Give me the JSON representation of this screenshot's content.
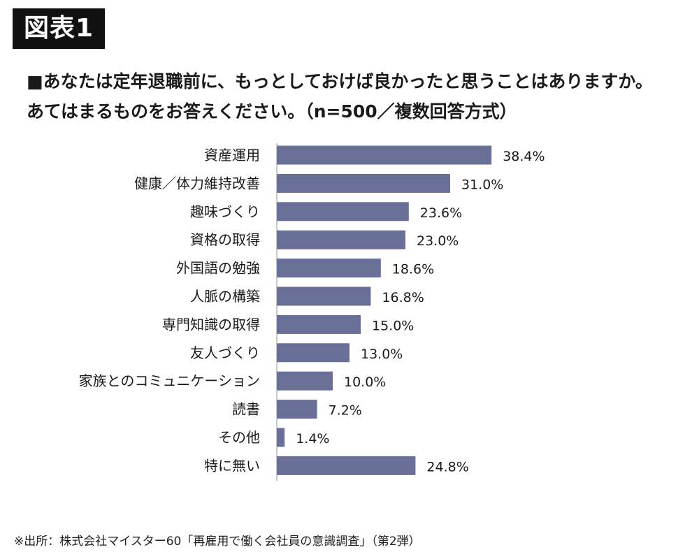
{
  "figure_tag": "図表1",
  "question": "■あなたは定年退職前に、もっとしておけば良かったと思うことはありますか。あてはまるものをお答えください。（n=500／複数回答方式）",
  "source": "※出所：株式会社マイスター60「再雇用で働く会社員の意識調査」（第2弾）",
  "colors": {
    "bar": "#6a6f98",
    "axis": "#b8b8b8",
    "text": "#1a1a1a"
  },
  "chart_data": {
    "type": "bar",
    "orientation": "horizontal",
    "categories": [
      "資産運用",
      "健康／体力維持改善",
      "趣味づくり",
      "資格の取得",
      "外国語の勉強",
      "人脈の構築",
      "専門知識の取得",
      "友人づくり",
      "家族とのコミュニケーション",
      "読書",
      "その他",
      "特に無い"
    ],
    "values": [
      38.4,
      31.0,
      23.6,
      23.0,
      18.6,
      16.8,
      15.0,
      13.0,
      10.0,
      7.2,
      1.4,
      24.8
    ],
    "value_labels": [
      "38.4%",
      "31.0%",
      "23.6%",
      "23.0%",
      "18.6%",
      "16.8%",
      "15.0%",
      "13.0%",
      "10.0%",
      "7.2%",
      "1.4%",
      "24.8%"
    ],
    "unit": "%",
    "xlim": [
      0,
      40
    ],
    "grid": false,
    "legend": false
  }
}
